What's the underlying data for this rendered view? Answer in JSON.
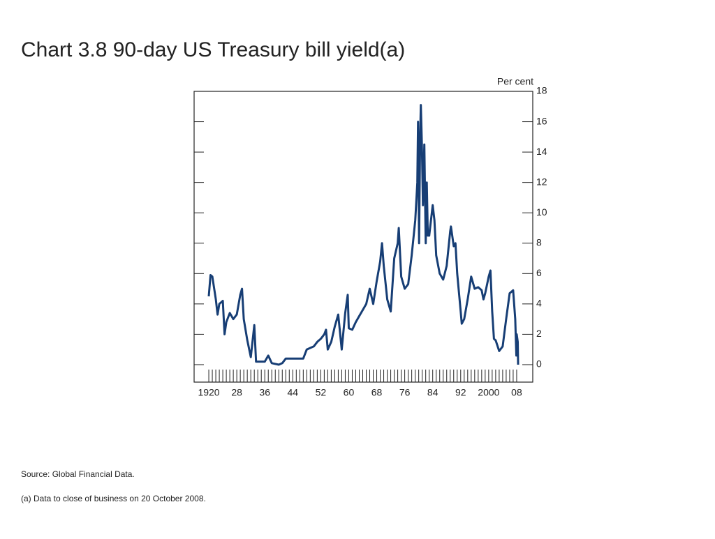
{
  "chart_data": {
    "type": "line",
    "title": "Chart 3.8  90-day US Treasury bill yield(a)",
    "y_axis_label": "Per cent",
    "source": "Source:  Global Financial Data.",
    "note": "(a)  Data to close of business on 20 October 2008.",
    "color": "#173e75",
    "x": [
      1920,
      1920.5,
      1921,
      1922,
      1922.5,
      1923,
      1924,
      1924.5,
      1925,
      1926,
      1927,
      1928,
      1929,
      1929.5,
      1930,
      1931,
      1932,
      1933,
      1933.5,
      1934,
      1936,
      1937,
      1938,
      1940,
      1941,
      1942,
      1947,
      1948,
      1949,
      1950,
      1951,
      1952,
      1953,
      1953.5,
      1954,
      1955,
      1956,
      1957,
      1958,
      1959,
      1959.7,
      1960,
      1961,
      1962,
      1963,
      1964,
      1965,
      1966,
      1967,
      1968,
      1969,
      1969.5,
      1970,
      1971,
      1972,
      1973,
      1974,
      1974.3,
      1975,
      1976,
      1977,
      1978,
      1979,
      1979.6,
      1979.8,
      1980.1,
      1980.4,
      1980.6,
      1980.9,
      1981.2,
      1981.6,
      1982,
      1982.3,
      1982.6,
      1983,
      1984,
      1984.5,
      1985,
      1986,
      1987,
      1988,
      1989,
      1989.2,
      1990,
      1990.5,
      1991,
      1992,
      1992.3,
      1993,
      1994,
      1995,
      1996,
      1997,
      1998,
      1998.5,
      1999,
      2000,
      2000.5,
      2001,
      2001.5,
      2002,
      2003,
      2004,
      2005,
      2006,
      2007,
      2007.6,
      2007.9,
      2008,
      2008.3,
      2008.4
    ],
    "values": [
      4.5,
      5.9,
      5.8,
      4.3,
      3.3,
      4.0,
      4.2,
      2.0,
      2.8,
      3.4,
      3.0,
      3.3,
      4.6,
      5.0,
      3.0,
      1.6,
      0.5,
      2.6,
      0.2,
      0.2,
      0.2,
      0.6,
      0.1,
      0.0,
      0.1,
      0.4,
      0.4,
      1.0,
      1.1,
      1.2,
      1.5,
      1.7,
      2.0,
      2.3,
      1.0,
      1.5,
      2.5,
      3.3,
      1.0,
      3.4,
      4.6,
      2.4,
      2.3,
      2.8,
      3.2,
      3.6,
      4.0,
      5.0,
      4.0,
      5.5,
      6.8,
      8.0,
      6.5,
      4.3,
      3.5,
      7.0,
      8.0,
      9.0,
      5.8,
      5.0,
      5.3,
      7.2,
      9.5,
      12.0,
      16.0,
      8.0,
      15.0,
      17.1,
      14.5,
      10.5,
      14.5,
      8.0,
      12.0,
      8.5,
      8.5,
      10.5,
      9.5,
      7.2,
      6.0,
      5.6,
      6.5,
      8.8,
      9.1,
      7.8,
      8.0,
      6.0,
      3.5,
      2.7,
      3.0,
      4.3,
      5.8,
      5.0,
      5.1,
      4.9,
      4.3,
      4.7,
      5.8,
      6.2,
      3.5,
      1.7,
      1.6,
      0.9,
      1.2,
      3.0,
      4.7,
      4.9,
      3.0,
      0.6,
      2.0,
      1.5,
      0.0
    ],
    "xlim": [
      1915.8,
      2012.6
    ],
    "ylim": [
      -1.15,
      18
    ],
    "xticks": [
      1920,
      {
        "value": 1928,
        "label": "28"
      },
      {
        "value": 1936,
        "label": "36"
      },
      {
        "value": 1944,
        "label": "44"
      },
      {
        "value": 1952,
        "label": "52"
      },
      {
        "value": 1960,
        "label": "60"
      },
      {
        "value": 1968,
        "label": "68"
      },
      {
        "value": 1976,
        "label": "76"
      },
      {
        "value": 1984,
        "label": "84"
      },
      {
        "value": 1992,
        "label": "92"
      },
      2000,
      {
        "value": 2008,
        "label": "08"
      }
    ],
    "yticks": [
      0,
      2,
      4,
      6,
      8,
      10,
      12,
      14,
      16,
      18
    ]
  }
}
